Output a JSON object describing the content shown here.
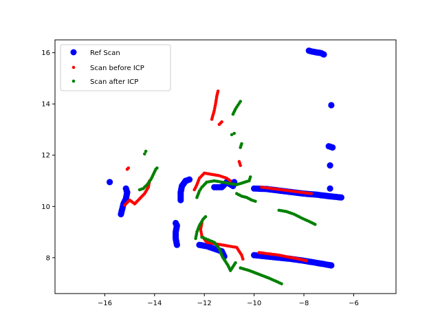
{
  "chart_data": {
    "type": "scatter",
    "title": "",
    "xlabel": "",
    "ylabel": "",
    "xlim": [
      -18.0,
      -4.3
    ],
    "ylim": [
      6.6,
      16.5
    ],
    "xticks": [
      -16,
      -14,
      -12,
      -10,
      -8,
      -6
    ],
    "yticks": [
      8,
      10,
      12,
      14,
      16
    ],
    "xtick_labels": [
      "−16",
      "−14",
      "−12",
      "−10",
      "−8",
      "−6"
    ],
    "ytick_labels": [
      "8",
      "10",
      "12",
      "14",
      "16"
    ],
    "grid": false,
    "legend_position": "upper-left",
    "series": [
      {
        "name": "Ref Scan",
        "color": "#0000ff",
        "marker": "large-dot",
        "segments": [
          [
            [
              -15.8,
              10.95
            ]
          ],
          [
            [
              -15.35,
              9.7
            ],
            [
              -15.3,
              9.9
            ],
            [
              -15.25,
              10.1
            ],
            [
              -15.15,
              10.3
            ],
            [
              -15.1,
              10.55
            ],
            [
              -15.15,
              10.7
            ]
          ],
          [
            [
              -13.1,
              8.5
            ],
            [
              -13.15,
              8.75
            ],
            [
              -13.15,
              9.0
            ],
            [
              -13.1,
              9.25
            ],
            [
              -13.15,
              9.35
            ]
          ],
          [
            [
              -12.95,
              10.25
            ],
            [
              -12.95,
              10.55
            ],
            [
              -12.9,
              10.8
            ],
            [
              -12.75,
              11.0
            ],
            [
              -12.6,
              11.05
            ]
          ],
          [
            [
              -12.2,
              8.5
            ],
            [
              -11.9,
              8.45
            ],
            [
              -11.6,
              8.35
            ],
            [
              -11.3,
              8.25
            ],
            [
              -11.2,
              8.05
            ]
          ],
          [
            [
              -11.6,
              10.75
            ],
            [
              -11.3,
              10.75
            ],
            [
              -11.1,
              10.95
            ],
            [
              -10.85,
              10.8
            ],
            [
              -10.8,
              10.95
            ]
          ],
          [
            [
              -10.0,
              10.7
            ],
            [
              -9.5,
              10.68
            ],
            [
              -9.0,
              10.62
            ],
            [
              -8.5,
              10.56
            ],
            [
              -8.0,
              10.5
            ],
            [
              -7.5,
              10.46
            ],
            [
              -7.0,
              10.4
            ],
            [
              -6.5,
              10.35
            ]
          ],
          [
            [
              -10.0,
              8.1
            ],
            [
              -9.5,
              8.05
            ],
            [
              -9.0,
              8.0
            ],
            [
              -8.5,
              7.95
            ],
            [
              -8.0,
              7.88
            ],
            [
              -7.5,
              7.8
            ],
            [
              -6.9,
              7.7
            ]
          ],
          [
            [
              -7.8,
              16.08
            ],
            [
              -7.7,
              16.05
            ],
            [
              -7.3,
              15.98
            ],
            [
              -7.2,
              15.93
            ]
          ],
          [
            [
              -7.0,
              12.35
            ],
            [
              -6.85,
              12.3
            ]
          ],
          [
            [
              -6.95,
              11.6
            ]
          ],
          [
            [
              -6.95,
              10.7
            ]
          ],
          [
            [
              -6.9,
              13.95
            ]
          ]
        ]
      },
      {
        "name": "Scan before ICP",
        "color": "#ff0000",
        "marker": "small-dot",
        "segments": [
          [
            [
              -15.1,
              11.45
            ],
            [
              -15.05,
              11.5
            ]
          ],
          [
            [
              -15.2,
              10.05
            ],
            [
              -15.0,
              10.25
            ],
            [
              -14.8,
              10.1
            ],
            [
              -14.6,
              10.3
            ],
            [
              -14.4,
              10.5
            ],
            [
              -14.25,
              10.75
            ],
            [
              -14.2,
              11.0
            ]
          ],
          [
            [
              -12.4,
              10.65
            ],
            [
              -12.3,
              10.85
            ],
            [
              -12.2,
              11.1
            ],
            [
              -12.0,
              11.3
            ],
            [
              -11.7,
              11.25
            ],
            [
              -11.4,
              11.2
            ],
            [
              -11.1,
              11.1
            ],
            [
              -10.95,
              11.0
            ]
          ],
          [
            [
              -11.7,
              13.4
            ],
            [
              -11.6,
              13.75
            ],
            [
              -11.55,
              14.0
            ],
            [
              -11.5,
              14.3
            ],
            [
              -11.45,
              14.5
            ]
          ],
          [
            [
              -11.4,
              13.2
            ],
            [
              -11.3,
              13.3
            ]
          ],
          [
            [
              -10.6,
              11.75
            ],
            [
              -10.55,
              11.6
            ]
          ],
          [
            [
              -12.1,
              9.35
            ],
            [
              -12.15,
              9.1
            ],
            [
              -12.1,
              8.85
            ],
            [
              -11.9,
              8.6
            ],
            [
              -11.6,
              8.55
            ],
            [
              -11.3,
              8.5
            ],
            [
              -11.0,
              8.45
            ],
            [
              -10.7,
              8.4
            ],
            [
              -10.5,
              8.1
            ],
            [
              -10.45,
              7.95
            ]
          ],
          [
            [
              -9.8,
              8.2
            ],
            [
              -9.4,
              8.15
            ],
            [
              -9.0,
              8.1
            ],
            [
              -8.6,
              8.02
            ],
            [
              -8.2,
              7.95
            ],
            [
              -7.9,
              7.88
            ]
          ],
          [
            [
              -9.7,
              10.75
            ],
            [
              -9.3,
              10.7
            ],
            [
              -8.9,
              10.65
            ],
            [
              -8.5,
              10.6
            ],
            [
              -8.1,
              10.55
            ],
            [
              -7.7,
              10.5
            ]
          ]
        ]
      },
      {
        "name": "Scan after ICP",
        "color": "#008000",
        "marker": "small-dot",
        "segments": [
          [
            [
              -14.4,
              12.05
            ],
            [
              -14.35,
              12.15
            ]
          ],
          [
            [
              -14.6,
              10.65
            ],
            [
              -14.45,
              10.7
            ],
            [
              -14.3,
              10.85
            ],
            [
              -14.15,
              11.05
            ],
            [
              -14.05,
              11.25
            ],
            [
              -13.95,
              11.45
            ],
            [
              -13.9,
              11.5
            ]
          ],
          [
            [
              -12.35,
              8.75
            ],
            [
              -12.3,
              9.0
            ],
            [
              -12.2,
              9.25
            ],
            [
              -12.05,
              9.5
            ],
            [
              -11.95,
              9.6
            ]
          ],
          [
            [
              -12.3,
              10.35
            ],
            [
              -12.2,
              10.6
            ],
            [
              -12.1,
              10.75
            ],
            [
              -11.9,
              10.95
            ],
            [
              -11.6,
              11.0
            ],
            [
              -11.3,
              10.95
            ],
            [
              -11.0,
              10.9
            ],
            [
              -10.7,
              10.85
            ],
            [
              -10.2,
              11.0
            ],
            [
              -10.15,
              11.15
            ]
          ],
          [
            [
              -12.1,
              8.8
            ],
            [
              -11.85,
              8.7
            ],
            [
              -11.6,
              8.6
            ],
            [
              -11.4,
              8.35
            ],
            [
              -11.3,
              8.1
            ],
            [
              -11.25,
              8.0
            ],
            [
              -11.05,
              7.7
            ],
            [
              -10.95,
              7.5
            ],
            [
              -10.75,
              7.8
            ]
          ],
          [
            [
              -10.85,
              13.6
            ],
            [
              -10.75,
              13.8
            ],
            [
              -10.65,
              13.95
            ],
            [
              -10.55,
              14.1
            ]
          ],
          [
            [
              -10.9,
              12.8
            ],
            [
              -10.8,
              12.85
            ]
          ],
          [
            [
              -10.55,
              12.3
            ],
            [
              -10.5,
              12.45
            ]
          ],
          [
            [
              -10.7,
              10.5
            ],
            [
              -10.5,
              10.4
            ],
            [
              -10.3,
              10.35
            ],
            [
              -10.1,
              10.25
            ],
            [
              -9.95,
              10.2
            ]
          ],
          [
            [
              -10.55,
              7.6
            ],
            [
              -10.2,
              7.5
            ],
            [
              -9.8,
              7.35
            ],
            [
              -9.4,
              7.2
            ],
            [
              -9.05,
              7.05
            ],
            [
              -8.9,
              6.98
            ]
          ],
          [
            [
              -9.0,
              9.85
            ],
            [
              -8.7,
              9.8
            ],
            [
              -8.4,
              9.7
            ],
            [
              -8.1,
              9.55
            ],
            [
              -7.8,
              9.42
            ],
            [
              -7.55,
              9.3
            ]
          ]
        ]
      }
    ]
  }
}
